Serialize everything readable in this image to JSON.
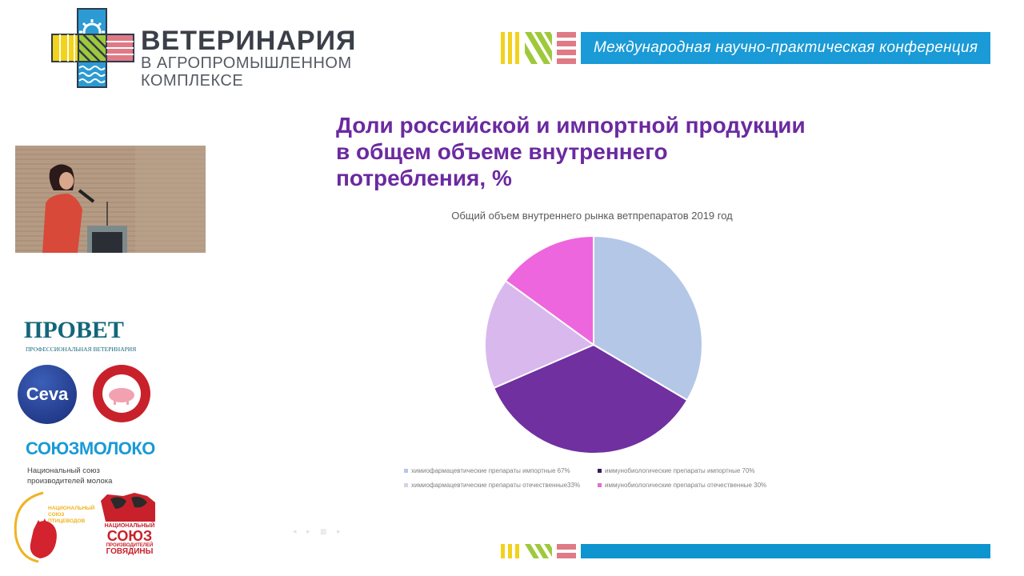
{
  "header": {
    "logo": {
      "title": "ВЕТЕРИНАРИЯ",
      "subtitle_line1": "В АГРОПРОМЫШЛЕННОМ",
      "subtitle_line2": "КОМПЛЕКСЕ"
    },
    "banner_text": "Международная научно-практическая конференция",
    "colors": {
      "banner_blue": "#1a9ad6",
      "stripe_yellow": "#f2d21b",
      "stripe_green": "#9fc93c",
      "stripe_pink": "#e07a86",
      "logo_blue": "#2c9bd3"
    }
  },
  "speaker_video": {
    "label": "speaker-video-feed"
  },
  "sponsors": {
    "provet": {
      "name": "ПРОВЕТ",
      "tagline": "ПРОФЕССИОНАЛЬНАЯ ВЕТЕРИНАРИЯ"
    },
    "ceva": {
      "name": "Ceva"
    },
    "pig_union": {
      "name": "Национальный Союз Свиноводов"
    },
    "soyuzmoloko": {
      "name": "СОЮЗМОЛОКО",
      "tagline_line1": "Национальный союз",
      "tagline_line2": "производителей молока"
    },
    "poultry_union": {
      "line1": "НАЦИОНАЛЬНЫЙ",
      "line2": "СОЮЗ",
      "line3": "ПТИЦЕВОДОВ"
    },
    "beef_union": {
      "line1": "НАЦИОНАЛЬНЫЙ",
      "line2": "СОЮЗ",
      "line3": "ПРОИЗВОДИТЕЛЕЙ",
      "line4": "ГОВЯДИНЫ"
    }
  },
  "slide": {
    "title_line1": "Доли российской и импортной продукции",
    "title_line2": "в общем объеме внутреннего",
    "title_line3": "потребления, %",
    "title_color": "#6b2aa0"
  },
  "chart_data": {
    "type": "pie",
    "title": "Общий объем внутреннего рынка ветпрепаратов 2019 год",
    "categories": [
      "химиофармацевтические препараты импортные 67%",
      "иммунобиологические препараты импортные 70%",
      "химиофармацевтические препараты отечественные33%",
      "иммунобиологические препараты отечественные 30%"
    ],
    "values": [
      67,
      70,
      33,
      30
    ],
    "colors": [
      "#b4c7e7",
      "#7030a0",
      "#d9b8ee",
      "#ee66dd"
    ],
    "start_angle_deg": 0,
    "direction": "clockwise",
    "legend_position": "bottom",
    "legend": [
      {
        "label": "химиофармацевтические препараты импортные 67%",
        "color": "#b4c7e7"
      },
      {
        "label": "иммунобиологические препараты импортные 70%",
        "color": "#3b1a5c"
      },
      {
        "label": "химиофармацевтические препараты отечественные33%",
        "color": "#d9d0e8"
      },
      {
        "label": "иммунобиологические препараты отечественные 30%",
        "color": "#e070d0"
      }
    ]
  }
}
